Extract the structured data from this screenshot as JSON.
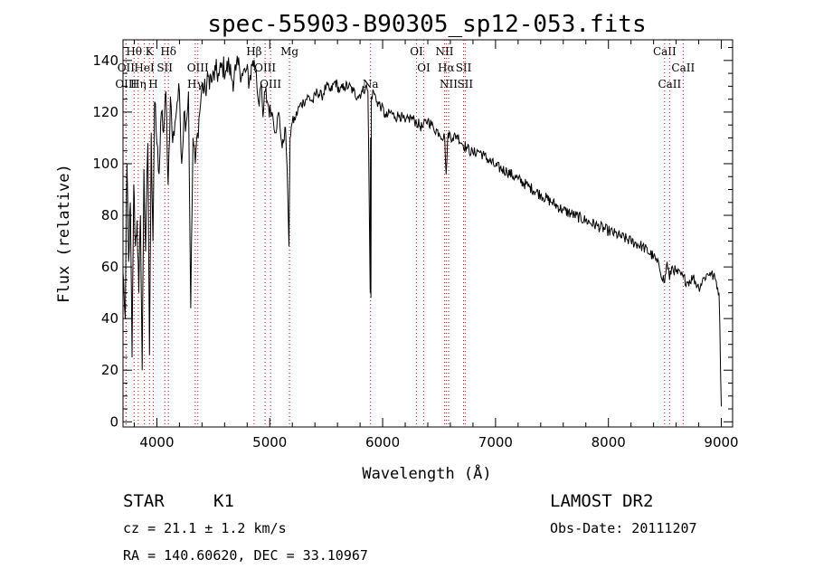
{
  "title": "spec-55903-B90305_sp12-053.fits",
  "info": {
    "class": "STAR",
    "subclass": "K1",
    "cz": "cz = 21.1 ± 1.2 km/s",
    "radec": "RA = 140.60620, DEC =  33.10967",
    "survey": "LAMOST DR2",
    "obsdate": "Obs-Date: 20111207"
  },
  "chart_data": {
    "type": "line",
    "title": "spec-55903-B90305_sp12-053.fits",
    "xlabel": "Wavelength (Å)",
    "ylabel": "Flux (relative)",
    "xlim": [
      3700,
      9100
    ],
    "ylim": [
      -2,
      148
    ],
    "grid": false,
    "x_ticks": [
      4000,
      5000,
      6000,
      7000,
      8000,
      9000
    ],
    "y_ticks": [
      0,
      20,
      40,
      60,
      80,
      100,
      120,
      140
    ],
    "series": [
      {
        "x": [
          3700,
          3720,
          3735,
          3750,
          3765,
          3780,
          3795,
          3810,
          3825,
          3840,
          3855,
          3870,
          3885,
          3900,
          3920,
          3935,
          3950,
          3965,
          3980,
          4000,
          4020,
          4040,
          4060,
          4080,
          4100,
          4120,
          4140,
          4160,
          4180,
          4200,
          4220,
          4240,
          4260,
          4280,
          4300,
          4320,
          4340,
          4360,
          4380,
          4400,
          4430,
          4460,
          4490,
          4520,
          4550,
          4580,
          4610,
          4640,
          4670,
          4700,
          4730,
          4760,
          4790,
          4820,
          4850,
          4880,
          4900,
          4920,
          4940,
          4960,
          4990,
          5020,
          5050,
          5080,
          5110,
          5140,
          5160,
          5170,
          5175,
          5180,
          5190,
          5200,
          5230,
          5260,
          5300,
          5340,
          5380,
          5420,
          5460,
          5500,
          5540,
          5580,
          5620,
          5660,
          5700,
          5740,
          5780,
          5820,
          5850,
          5870,
          5890,
          5893,
          5896,
          5900,
          5920,
          5950,
          5990,
          6030,
          6070,
          6110,
          6150,
          6200,
          6250,
          6300,
          6350,
          6400,
          6450,
          6500,
          6550,
          6563,
          6580,
          6620,
          6660,
          6700,
          6750,
          6800,
          6850,
          6900,
          7000,
          7100,
          7200,
          7300,
          7400,
          7500,
          7600,
          7700,
          7800,
          7900,
          8000,
          8100,
          8200,
          8300,
          8400,
          8450,
          8498,
          8520,
          8542,
          8560,
          8600,
          8662,
          8700,
          8750,
          8800,
          8850,
          8900,
          8950,
          8980,
          9000
        ],
        "y": [
          58,
          40,
          100,
          62,
          85,
          25,
          92,
          68,
          78,
          50,
          80,
          20,
          98,
          66,
          108,
          26,
          112,
          70,
          124,
          108,
          96,
          120,
          112,
          128,
          92,
          126,
          108,
          116,
          124,
          128,
          100,
          120,
          116,
          128,
          44,
          110,
          100,
          112,
          120,
          130,
          128,
          134,
          132,
          136,
          134,
          138,
          136,
          138,
          132,
          136,
          138,
          134,
          136,
          132,
          140,
          136,
          124,
          130,
          118,
          128,
          122,
          120,
          112,
          120,
          106,
          114,
          88,
          68,
          90,
          110,
          114,
          116,
          118,
          122,
          124,
          126,
          124,
          128,
          126,
          130,
          128,
          132,
          128,
          130,
          130,
          128,
          126,
          128,
          130,
          128,
          50,
          110,
          48,
          126,
          128,
          124,
          122,
          118,
          120,
          118,
          119,
          116,
          118,
          116,
          114,
          117,
          114,
          112,
          110,
          96,
          112,
          110,
          111,
          108,
          106,
          104,
          105,
          103,
          99,
          97,
          94,
          91,
          88,
          85,
          82,
          80,
          78,
          76,
          74,
          72,
          70,
          68,
          64,
          60,
          54,
          62,
          55,
          60,
          58,
          56,
          54,
          56,
          52,
          56,
          58,
          55,
          50,
          6
        ],
        "color": "#000000"
      }
    ],
    "line_markers": [
      {
        "label": "Hθ",
        "x": 3798,
        "row": 1
      },
      {
        "label": "K",
        "x": 3934,
        "row": 1
      },
      {
        "label": "Hδ",
        "x": 4102,
        "row": 1
      },
      {
        "label": "Hβ",
        "x": 4861,
        "row": 1
      },
      {
        "label": "Mg",
        "x": 5175,
        "row": 1
      },
      {
        "label": "OI",
        "x": 6300,
        "row": 1
      },
      {
        "label": "NII",
        "x": 6548,
        "row": 1
      },
      {
        "label": "CaII",
        "x": 8498,
        "row": 1
      },
      {
        "label": "OII",
        "x": 3727,
        "row": 2
      },
      {
        "label": "HeI",
        "x": 3889,
        "row": 2
      },
      {
        "label": "SII",
        "x": 4070,
        "row": 2
      },
      {
        "label": "OIII",
        "x": 4363,
        "row": 2
      },
      {
        "label": "OIII",
        "x": 4959,
        "row": 2
      },
      {
        "label": "OI",
        "x": 6364,
        "row": 2
      },
      {
        "label": "Hα",
        "x": 6563,
        "row": 2
      },
      {
        "label": "SII",
        "x": 6717,
        "row": 2
      },
      {
        "label": "CaII",
        "x": 8662,
        "row": 2
      },
      {
        "label": "OIII",
        "x": 3727,
        "row": 3
      },
      {
        "label": "Hη",
        "x": 3835,
        "row": 3
      },
      {
        "label": "H",
        "x": 3968,
        "row": 3
      },
      {
        "label": "Hγ",
        "x": 4340,
        "row": 3
      },
      {
        "label": "OIII",
        "x": 5007,
        "row": 3
      },
      {
        "label": "Na",
        "x": 5893,
        "row": 3
      },
      {
        "label": "NII",
        "x": 6584,
        "row": 3
      },
      {
        "label": "SII",
        "x": 6731,
        "row": 3
      },
      {
        "label": "CaII",
        "x": 8542,
        "row": 3
      }
    ]
  }
}
